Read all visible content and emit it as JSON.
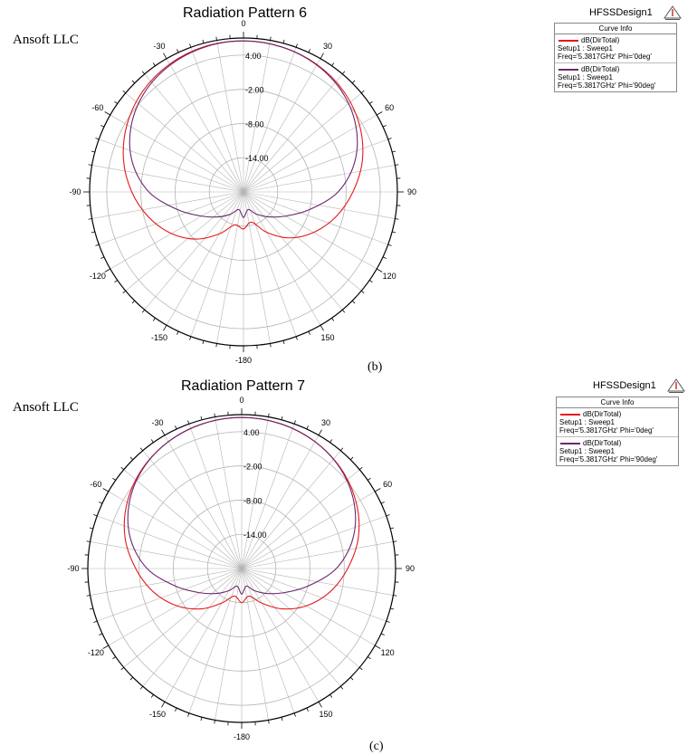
{
  "colors": {
    "phi0": "#e4191c",
    "phi90": "#6a2a6e",
    "grid": "#b4b4b4"
  },
  "panels": [
    {
      "caption": "(b)",
      "company": "Ansoft LLC",
      "design_name": "HFSSDesign1",
      "logo": "ansoft-logo",
      "legend": {
        "header": "Curve Info",
        "entries": [
          {
            "name": "dB(DirTotal)",
            "setup": "Setup1 : Sweep1",
            "params": "Freq='5.3817GHz' Phi='0deg'"
          },
          {
            "name": "dB(DirTotal)",
            "setup": "Setup1 : Sweep1",
            "params": "Freq='5.3817GHz' Phi='90deg'"
          }
        ]
      }
    },
    {
      "caption": "(c)",
      "company": "Ansoft LLC",
      "design_name": "HFSSDesign1",
      "logo": "ansoft-logo",
      "legend": {
        "header": "Curve Info",
        "entries": [
          {
            "name": "dB(DirTotal)",
            "setup": "Setup1 : Sweep1",
            "params": "Freq='5.3817GHz' Phi='0deg'"
          },
          {
            "name": "dB(DirTotal)",
            "setup": "Setup1 : Sweep1",
            "params": "Freq='5.3817GHz' Phi='90deg'"
          }
        ]
      }
    }
  ],
  "chart_data": [
    {
      "type": "polar",
      "title": "Radiation Pattern 6",
      "angle_unit": "deg",
      "angle_ticks": [
        0,
        30,
        60,
        90,
        120,
        150,
        -180,
        -150,
        -120,
        -90,
        -60,
        -30
      ],
      "radial_ticks": [
        4.0,
        -2.0,
        -8.0,
        -14.0
      ],
      "radial_range": [
        -20,
        7
      ],
      "grid": true,
      "legend_position": "right",
      "series": [
        {
          "name": "dB(DirTotal) Setup1 : Sweep1 Freq='5.3817GHz' Phi='0deg'",
          "theta": [
            0,
            15,
            30,
            45,
            60,
            75,
            90,
            105,
            120,
            135,
            150,
            165,
            180,
            -165,
            -150,
            -135,
            -120,
            -105,
            -90,
            -75,
            -60,
            -45,
            -30,
            -15
          ],
          "values": [
            6.5,
            6.3,
            5.8,
            4.9,
            3.5,
            1.6,
            -0.8,
            -3.2,
            -5.8,
            -8.6,
            -11.8,
            -14.5,
            -13.5,
            -14.0,
            -11.5,
            -8.3,
            -5.4,
            -2.8,
            -0.4,
            1.8,
            3.6,
            5.0,
            5.9,
            6.4
          ]
        },
        {
          "name": "dB(DirTotal) Setup1 : Sweep1 Freq='5.3817GHz' Phi='90deg'",
          "theta": [
            0,
            15,
            30,
            45,
            60,
            75,
            90,
            105,
            120,
            135,
            150,
            165,
            180,
            -165,
            -150,
            -135,
            -120,
            -105,
            -90,
            -75,
            -60,
            -45,
            -30,
            -15
          ],
          "values": [
            6.5,
            6.3,
            5.7,
            4.6,
            2.8,
            0.2,
            -3.4,
            -8.0,
            -11.5,
            -13.8,
            -15.5,
            -16.8,
            -15.5,
            -16.8,
            -15.5,
            -13.8,
            -11.5,
            -8.0,
            -3.4,
            0.2,
            2.8,
            4.6,
            5.7,
            6.3
          ]
        }
      ]
    },
    {
      "type": "polar",
      "title": "Radiation Pattern 7",
      "angle_unit": "deg",
      "angle_ticks": [
        0,
        30,
        60,
        90,
        120,
        150,
        -180,
        -150,
        -120,
        -90,
        -60,
        -30
      ],
      "radial_ticks": [
        4.0,
        -2.0,
        -8.0,
        -14.0
      ],
      "radial_range": [
        -20,
        7
      ],
      "grid": true,
      "legend_position": "right",
      "series": [
        {
          "name": "dB(DirTotal) Setup1 : Sweep1 Freq='5.3817GHz' Phi='0deg'",
          "theta": [
            0,
            15,
            30,
            45,
            60,
            75,
            90,
            105,
            120,
            135,
            150,
            165,
            180,
            -165,
            -150,
            -135,
            -120,
            -105,
            -90,
            -75,
            -60,
            -45,
            -30,
            -15
          ],
          "values": [
            6.5,
            6.3,
            5.7,
            4.7,
            3.2,
            1.2,
            -1.4,
            -4.0,
            -6.9,
            -10.0,
            -13.0,
            -15.0,
            -14.0,
            -15.0,
            -13.0,
            -10.0,
            -6.9,
            -4.0,
            -1.4,
            1.2,
            3.2,
            4.7,
            5.7,
            6.3
          ]
        },
        {
          "name": "dB(DirTotal) Setup1 : Sweep1 Freq='5.3817GHz' Phi='90deg'",
          "theta": [
            0,
            15,
            30,
            45,
            60,
            75,
            90,
            105,
            120,
            135,
            150,
            165,
            180,
            -165,
            -150,
            -135,
            -120,
            -105,
            -90,
            -75,
            -60,
            -45,
            -30,
            -15
          ],
          "values": [
            6.5,
            6.3,
            5.7,
            4.6,
            2.8,
            0.2,
            -3.4,
            -8.0,
            -11.5,
            -13.8,
            -15.5,
            -16.8,
            -15.5,
            -16.8,
            -15.5,
            -13.8,
            -11.5,
            -8.0,
            -3.4,
            0.2,
            2.8,
            4.6,
            5.7,
            6.3
          ]
        }
      ]
    }
  ]
}
